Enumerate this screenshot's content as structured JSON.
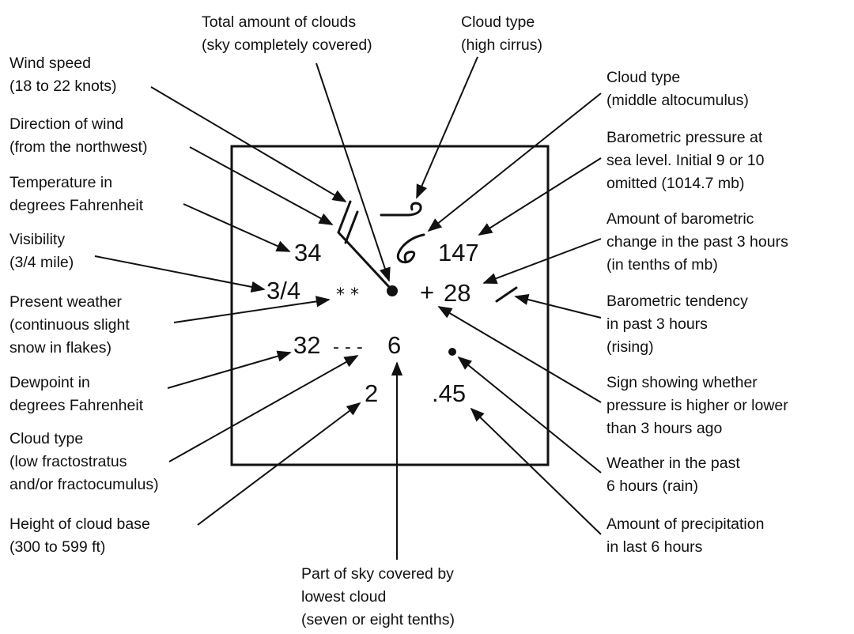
{
  "labels": {
    "total_clouds": [
      "Total amount of clouds",
      "(sky completely covered)"
    ],
    "cloud_high": [
      "Cloud type",
      "(high cirrus)"
    ],
    "wind_speed": [
      "Wind speed",
      "(18 to 22 knots)"
    ],
    "cloud_middle": [
      "Cloud type",
      "(middle altocumulus)"
    ],
    "wind_direction": [
      "Direction of wind",
      "(from the northwest)"
    ],
    "pressure": [
      "Barometric pressure at",
      "sea level. Initial 9 or 10",
      "omitted (1014.7 mb)"
    ],
    "temperature": [
      "Temperature in",
      "degrees Fahrenheit"
    ],
    "pressure_change": [
      "Amount of barometric",
      "change in the past 3 hours",
      "(in tenths of mb)"
    ],
    "visibility": [
      "Visibility",
      "(3/4 mile)"
    ],
    "present_weather": [
      "Present weather",
      "(continuous slight",
      "snow in flakes)"
    ],
    "tendency": [
      "Barometric tendency",
      "in past 3 hours",
      "(rising)"
    ],
    "dewpoint": [
      "Dewpoint in",
      "degrees Fahrenheit"
    ],
    "sign": [
      "Sign showing whether",
      "pressure is higher or lower",
      "than 3 hours ago"
    ],
    "cloud_low": [
      "Cloud type",
      "(low fractostratus",
      "and/or fractocumulus)"
    ],
    "past_weather": [
      "Weather in the past",
      "6 hours (rain)"
    ],
    "cloud_base": [
      "Height of cloud base",
      "(300 to 599 ft)"
    ],
    "precip": [
      "Amount of precipitation",
      "in last 6 hours"
    ],
    "sky_lowest": [
      "Part of sky covered by",
      "lowest cloud",
      "(seven or eight tenths)"
    ]
  },
  "station": {
    "temperature": "34",
    "pressure": "147",
    "visibility": "3/4",
    "weather_symbol": "* *",
    "pressure_sign": "+",
    "pressure_change": "28",
    "dewpoint": "32",
    "low_cloud_symbol": "- - -",
    "sky_lowest_value": "6",
    "cloud_base_value": "2",
    "precip_value": ".45"
  }
}
